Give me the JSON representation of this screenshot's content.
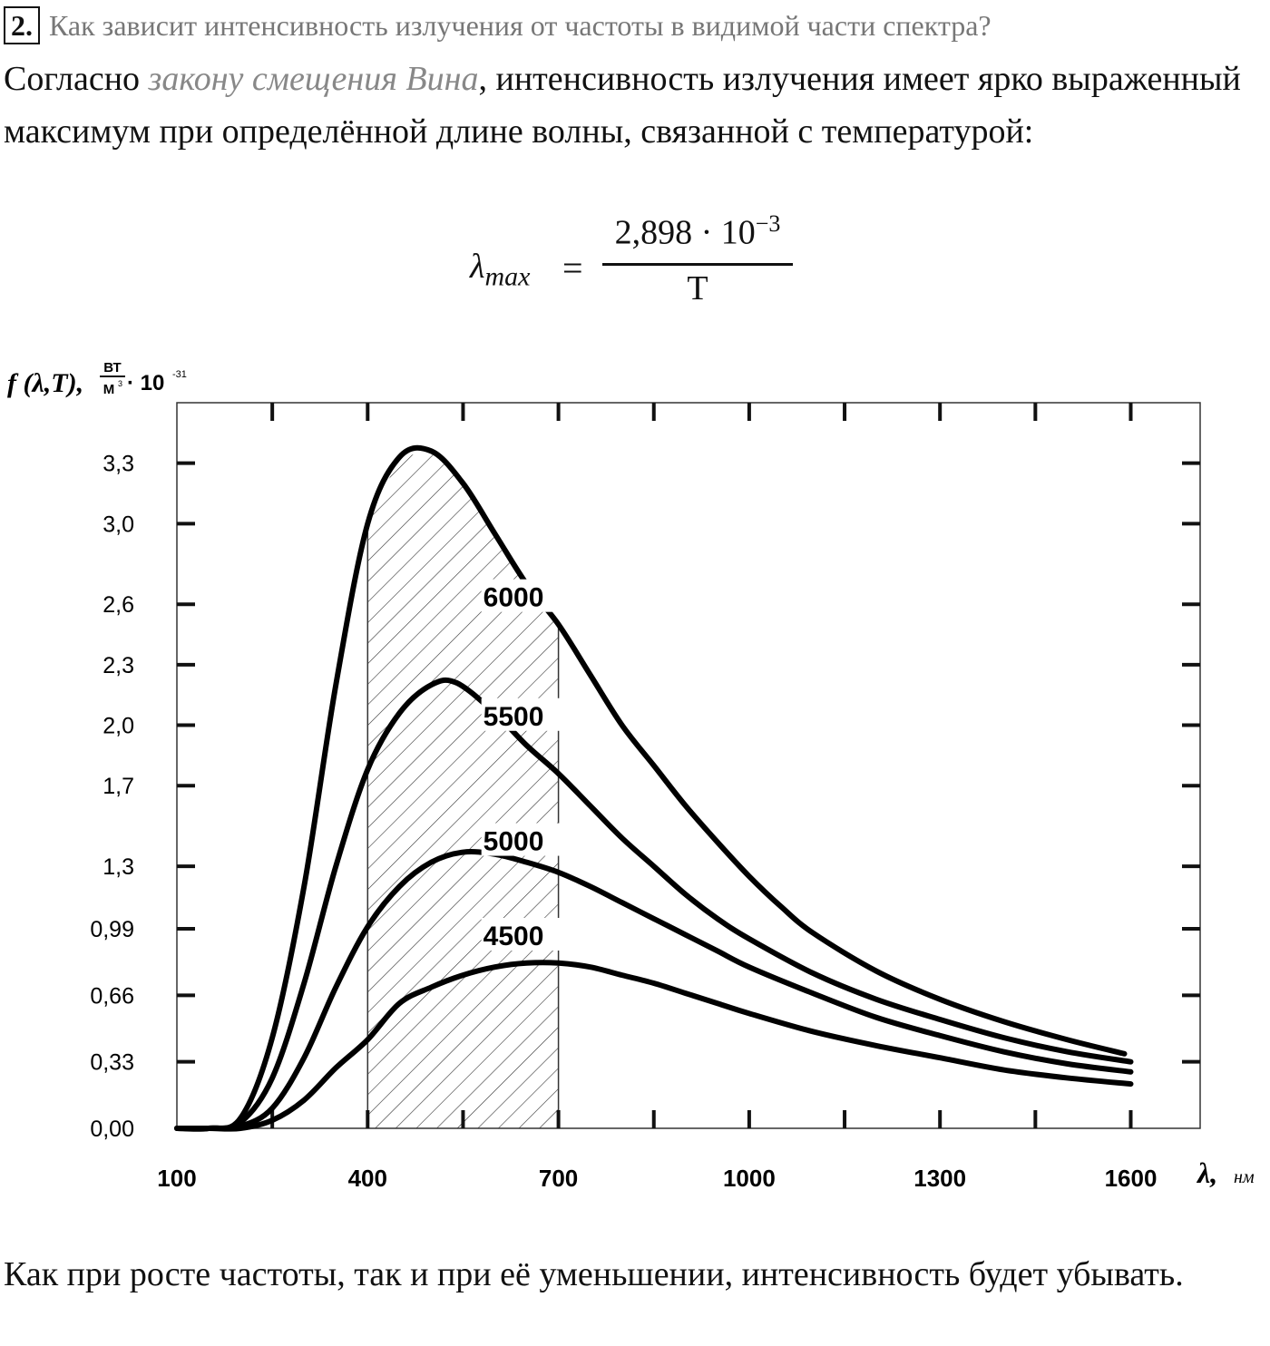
{
  "question": {
    "number": "2.",
    "text": "Как зависит интенсивность излучения от частоты в видимой части спектра?"
  },
  "intro": {
    "before": "Согласно ",
    "law": "закону смещения Вина",
    "after": ", интенсивность излучения имеет ярко выраженный максимум при определённой длине волны, связанной с температурой:"
  },
  "formula": {
    "lhs": "λ",
    "lhs_sub": "max",
    "equals": "=",
    "numerator": "2,898 · 10",
    "numerator_exp": "−3",
    "denominator": "T"
  },
  "chart_data": {
    "type": "line",
    "ylabel": "f (λ,T), Вт/м³ · 10⁻³¹",
    "ylabel_parts": {
      "func": "f (λ,T),",
      "unit_num": "ВТ",
      "unit_den": "М",
      "unit_den_exp": "3",
      "mult": "· 10",
      "mult_exp": "-31"
    },
    "xlabel": "λ, нм",
    "xlabel_parts": {
      "sym": "λ,",
      "unit": "нм"
    },
    "xlim": [
      100,
      1700
    ],
    "ylim": [
      0,
      3.6
    ],
    "x_tick_labels": [
      {
        "x": 100,
        "label": "100"
      },
      {
        "x": 400,
        "label": "400"
      },
      {
        "x": 700,
        "label": "700"
      },
      {
        "x": 1000,
        "label": "1000"
      },
      {
        "x": 1300,
        "label": "1300"
      },
      {
        "x": 1600,
        "label": "1600"
      }
    ],
    "x_minor_ticks": [
      250,
      550,
      850,
      1150,
      1450
    ],
    "y_tick_labels": [
      {
        "y": 0,
        "label": "0,00"
      },
      {
        "y": 0.33,
        "label": "0,33"
      },
      {
        "y": 0.66,
        "label": "0,66"
      },
      {
        "y": 0.99,
        "label": "0,99"
      },
      {
        "y": 1.3,
        "label": "1,3"
      },
      {
        "y": 1.7,
        "label": "1,7"
      },
      {
        "y": 2.0,
        "label": "2,0"
      },
      {
        "y": 2.3,
        "label": "2,3"
      },
      {
        "y": 2.6,
        "label": "2,6"
      },
      {
        "y": 3.0,
        "label": "3,0"
      },
      {
        "y": 3.3,
        "label": "3,3"
      }
    ],
    "shaded_band": {
      "x_from": 400,
      "x_to": 700,
      "pattern": "diagonal-hatch"
    },
    "series": [
      {
        "name": "6000",
        "points": [
          [
            100,
            0
          ],
          [
            150,
            0
          ],
          [
            200,
            0.05
          ],
          [
            250,
            0.45
          ],
          [
            300,
            1.2
          ],
          [
            350,
            2.2
          ],
          [
            400,
            3.0
          ],
          [
            450,
            3.33
          ],
          [
            500,
            3.36
          ],
          [
            550,
            3.2
          ],
          [
            600,
            2.95
          ],
          [
            650,
            2.7
          ],
          [
            700,
            2.5
          ],
          [
            750,
            2.25
          ],
          [
            800,
            2.0
          ],
          [
            850,
            1.8
          ],
          [
            900,
            1.6
          ],
          [
            950,
            1.42
          ],
          [
            1000,
            1.25
          ],
          [
            1050,
            1.1
          ],
          [
            1100,
            0.97
          ],
          [
            1200,
            0.78
          ],
          [
            1300,
            0.64
          ],
          [
            1400,
            0.53
          ],
          [
            1500,
            0.44
          ],
          [
            1590,
            0.37
          ]
        ]
      },
      {
        "name": "5500",
        "points": [
          [
            100,
            0
          ],
          [
            150,
            0
          ],
          [
            200,
            0.03
          ],
          [
            250,
            0.25
          ],
          [
            300,
            0.72
          ],
          [
            350,
            1.3
          ],
          [
            400,
            1.78
          ],
          [
            450,
            2.06
          ],
          [
            500,
            2.2
          ],
          [
            540,
            2.21
          ],
          [
            600,
            2.06
          ],
          [
            650,
            1.9
          ],
          [
            700,
            1.76
          ],
          [
            750,
            1.6
          ],
          [
            800,
            1.44
          ],
          [
            850,
            1.3
          ],
          [
            900,
            1.16
          ],
          [
            950,
            1.04
          ],
          [
            1000,
            0.94
          ],
          [
            1100,
            0.77
          ],
          [
            1200,
            0.64
          ],
          [
            1300,
            0.54
          ],
          [
            1400,
            0.45
          ],
          [
            1500,
            0.38
          ],
          [
            1600,
            0.33
          ]
        ]
      },
      {
        "name": "5000",
        "points": [
          [
            100,
            0
          ],
          [
            150,
            0
          ],
          [
            200,
            0.01
          ],
          [
            250,
            0.1
          ],
          [
            300,
            0.35
          ],
          [
            350,
            0.7
          ],
          [
            400,
            1.0
          ],
          [
            450,
            1.2
          ],
          [
            500,
            1.32
          ],
          [
            550,
            1.37
          ],
          [
            600,
            1.36
          ],
          [
            650,
            1.32
          ],
          [
            700,
            1.27
          ],
          [
            750,
            1.2
          ],
          [
            800,
            1.12
          ],
          [
            850,
            1.04
          ],
          [
            900,
            0.96
          ],
          [
            950,
            0.88
          ],
          [
            1000,
            0.8
          ],
          [
            1100,
            0.67
          ],
          [
            1200,
            0.55
          ],
          [
            1300,
            0.46
          ],
          [
            1400,
            0.38
          ],
          [
            1500,
            0.32
          ],
          [
            1600,
            0.28
          ]
        ]
      },
      {
        "name": "4500",
        "points": [
          [
            100,
            0
          ],
          [
            150,
            0
          ],
          [
            200,
            0.0
          ],
          [
            250,
            0.04
          ],
          [
            300,
            0.14
          ],
          [
            350,
            0.3
          ],
          [
            400,
            0.44
          ],
          [
            450,
            0.62
          ],
          [
            500,
            0.7
          ],
          [
            550,
            0.76
          ],
          [
            600,
            0.8
          ],
          [
            650,
            0.82
          ],
          [
            700,
            0.82
          ],
          [
            750,
            0.8
          ],
          [
            800,
            0.76
          ],
          [
            850,
            0.72
          ],
          [
            900,
            0.67
          ],
          [
            950,
            0.62
          ],
          [
            1000,
            0.57
          ],
          [
            1100,
            0.48
          ],
          [
            1200,
            0.41
          ],
          [
            1300,
            0.35
          ],
          [
            1400,
            0.29
          ],
          [
            1500,
            0.25
          ],
          [
            1600,
            0.22
          ]
        ]
      }
    ],
    "series_labels": [
      {
        "series": "6000",
        "x": 770,
        "y": 2.58
      },
      {
        "series": "5500",
        "x": 770,
        "y": 1.99
      },
      {
        "series": "5000",
        "x": 770,
        "y": 1.37
      },
      {
        "series": "4500",
        "x": 770,
        "y": 0.9
      }
    ]
  },
  "conclusion": {
    "text": "Как при росте частоты, так и при её уменьшении, интенсивность будет убывать."
  }
}
